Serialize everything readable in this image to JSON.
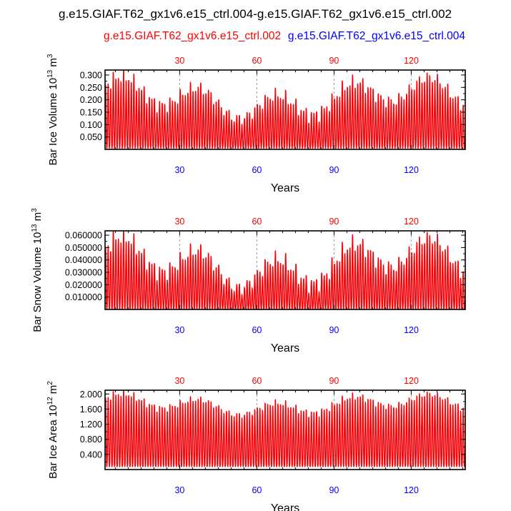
{
  "figure": {
    "title": "g.e15.GIAF.T62_gx1v6.e15_ctrl.004-g.e15.GIAF.T62_gx1v6.e15_ctrl.002",
    "legend_red": "g.e15.GIAF.T62_gx1v6.e15_ctrl.002",
    "legend_blue": "g.e15.GIAF.T62_gx1v6.e15_ctrl.004",
    "colors": {
      "series_a": "#ff0000",
      "series_b": "#0000ff",
      "grid": "#999999"
    }
  },
  "chart_data": [
    {
      "type": "line",
      "title": "",
      "xlabel": "Years",
      "ylabel_main": "Bar Ice Volume 10",
      "ylabel_exp": "13",
      "ylabel_unit": " m",
      "ylabel_unit_exp": "3",
      "xlim": [
        1,
        141
      ],
      "ylim": [
        0.0,
        0.32
      ],
      "yticks": [
        "0.050",
        "0.100",
        "0.150",
        "0.200",
        "0.250",
        "0.300"
      ],
      "ytick_values": [
        0.05,
        0.1,
        0.15,
        0.2,
        0.25,
        0.3
      ],
      "xticks_top": [
        "30",
        "60",
        "90",
        "120"
      ],
      "xticks_bottom": [
        "30",
        "60",
        "90",
        "120"
      ],
      "xtick_values": [
        30,
        60,
        90,
        120
      ],
      "seasonal_cycle": {
        "min": 0.005,
        "max_base": 0.21,
        "max_amplitude": 0.09,
        "points_per_year": 12
      },
      "series": [
        {
          "name": "g.e15.GIAF.T62_gx1v6.e15_ctrl.002",
          "color": "#ff0000"
        },
        {
          "name": "g.e15.GIAF.T62_gx1v6.e15_ctrl.004",
          "color": "#0000ff"
        }
      ]
    },
    {
      "type": "line",
      "title": "",
      "xlabel": "Years",
      "ylabel_main": "Bar Snow Volume 10",
      "ylabel_exp": "13",
      "ylabel_unit": " m",
      "ylabel_unit_exp": "3",
      "xlim": [
        1,
        141
      ],
      "ylim": [
        0.0,
        0.0635
      ],
      "yticks": [
        "0.010000",
        "0.020000",
        "0.030000",
        "0.040000",
        "0.050000",
        "0.060000"
      ],
      "ytick_values": [
        0.01,
        0.02,
        0.03,
        0.04,
        0.05,
        0.06
      ],
      "xticks_top": [
        "30",
        "60",
        "90",
        "120"
      ],
      "xticks_bottom": [
        "30",
        "60",
        "90",
        "120"
      ],
      "xtick_values": [
        30,
        60,
        90,
        120
      ],
      "seasonal_cycle": {
        "min": 0.0,
        "max_base": 0.038,
        "max_amplitude": 0.022,
        "points_per_year": 12
      },
      "series": [
        {
          "name": "g.e15.GIAF.T62_gx1v6.e15_ctrl.002",
          "color": "#ff0000"
        },
        {
          "name": "g.e15.GIAF.T62_gx1v6.e15_ctrl.004",
          "color": "#0000ff"
        }
      ]
    },
    {
      "type": "line",
      "title": "",
      "xlabel": "Years",
      "ylabel_main": "Bar Ice Area 10",
      "ylabel_exp": "12",
      "ylabel_unit": " m",
      "ylabel_unit_exp": "2",
      "xlim": [
        1,
        141
      ],
      "ylim": [
        0.0,
        2.1
      ],
      "yticks": [
        "0.400",
        "0.800",
        "1.200",
        "1.600",
        "2.000"
      ],
      "ytick_values": [
        0.4,
        0.8,
        1.2,
        1.6,
        2.0
      ],
      "xticks_top": [
        "30",
        "60",
        "90",
        "120"
      ],
      "xticks_bottom": [
        "30",
        "60",
        "90",
        "120"
      ],
      "xtick_values": [
        30,
        60,
        90,
        120
      ],
      "seasonal_cycle": {
        "min": 0.08,
        "max_base": 1.75,
        "max_amplitude": 0.3,
        "points_per_year": 12
      },
      "series": [
        {
          "name": "g.e15.GIAF.T62_gx1v6.e15_ctrl.002",
          "color": "#ff0000"
        },
        {
          "name": "g.e15.GIAF.T62_gx1v6.e15_ctrl.004",
          "color": "#0000ff"
        }
      ]
    }
  ]
}
